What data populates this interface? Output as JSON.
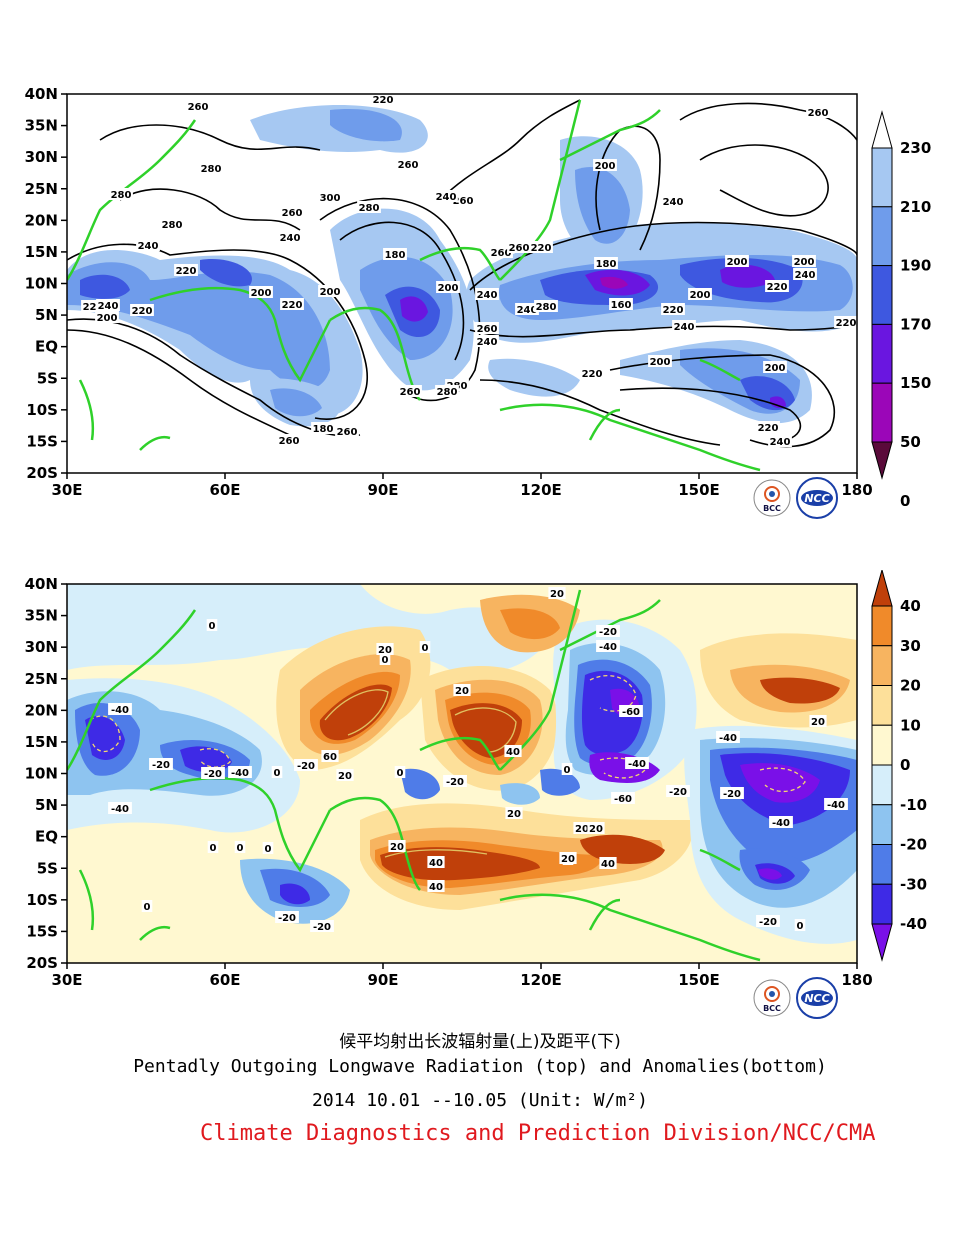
{
  "top_panel": {
    "x_ticks": [
      "30E",
      "60E",
      "90E",
      "120E",
      "150E",
      "180"
    ],
    "y_ticks": [
      "40N",
      "35N",
      "30N",
      "25N",
      "20N",
      "15N",
      "10N",
      "5N",
      "EQ",
      "5S",
      "10S",
      "15S",
      "20S"
    ],
    "colorbar": {
      "labels": [
        "230",
        "210",
        "190",
        "170",
        "150",
        "50",
        "0"
      ],
      "colors": [
        "#ffffff",
        "#a6c8f2",
        "#6f9ceb",
        "#3e58e0",
        "#6a16e0",
        "#9b06b8",
        "#5a0a3a"
      ]
    },
    "contour_labels": [
      "260",
      "220",
      "280",
      "260",
      "280",
      "300",
      "280",
      "280",
      "260",
      "240",
      "260",
      "240",
      "220",
      "200",
      "220",
      "200",
      "180",
      "200",
      "240",
      "260",
      "260",
      "220",
      "240",
      "280",
      "260",
      "280",
      "200",
      "240",
      "180",
      "160",
      "220",
      "200",
      "240",
      "220",
      "240",
      "200",
      "220",
      "200",
      "220",
      "240",
      "260",
      "280",
      "200",
      "220",
      "240",
      "260",
      "180",
      "260",
      "200",
      "220",
      "220",
      "240",
      "240",
      "260",
      "200"
    ]
  },
  "bottom_panel": {
    "x_ticks": [
      "30E",
      "60E",
      "90E",
      "120E",
      "150E",
      "180"
    ],
    "y_ticks": [
      "40N",
      "35N",
      "30N",
      "25N",
      "20N",
      "15N",
      "10N",
      "5N",
      "EQ",
      "5S",
      "10S",
      "15S",
      "20S"
    ],
    "colorbar": {
      "labels": [
        "40",
        "30",
        "20",
        "10",
        "0",
        "-10",
        "-20",
        "-30",
        "-40"
      ],
      "colors": [
        "#c0400a",
        "#f08a2a",
        "#f7b460",
        "#fde09a",
        "#fff8d0",
        "#d6eefa",
        "#8ec4f0",
        "#4f7ce8",
        "#3e2ae6",
        "#7a10e8"
      ]
    },
    "contour_labels": [
      "20",
      "0",
      "-20",
      "-40",
      "0",
      "20",
      "0",
      "20",
      "-40",
      "-60",
      "20",
      "-40",
      "-20",
      "-20",
      "-40",
      "0",
      "-20",
      "60",
      "20",
      "40",
      "0",
      "-20",
      "0",
      "-40",
      "-60",
      "-20",
      "-20",
      "-40",
      "-40",
      "-40",
      "0",
      "0",
      "0",
      "-20",
      "20",
      "20",
      "0",
      "20",
      "40",
      "40",
      "20",
      "40",
      "0",
      "-20",
      "-20",
      "0",
      "20"
    ]
  },
  "logos": {
    "left": "BCC",
    "right": "NCC"
  },
  "caption": {
    "chinese_title": "候平均射出长波辐射量(上)及距平(下)",
    "english_title": "Pentadly Outgoing Longwave Radiation (top) and Anomalies(bottom)",
    "date_line": "2014  10.01 --10.05    (Unit: W/m²)",
    "organization": "Climate Diagnostics and Prediction Division/NCC/CMA"
  }
}
